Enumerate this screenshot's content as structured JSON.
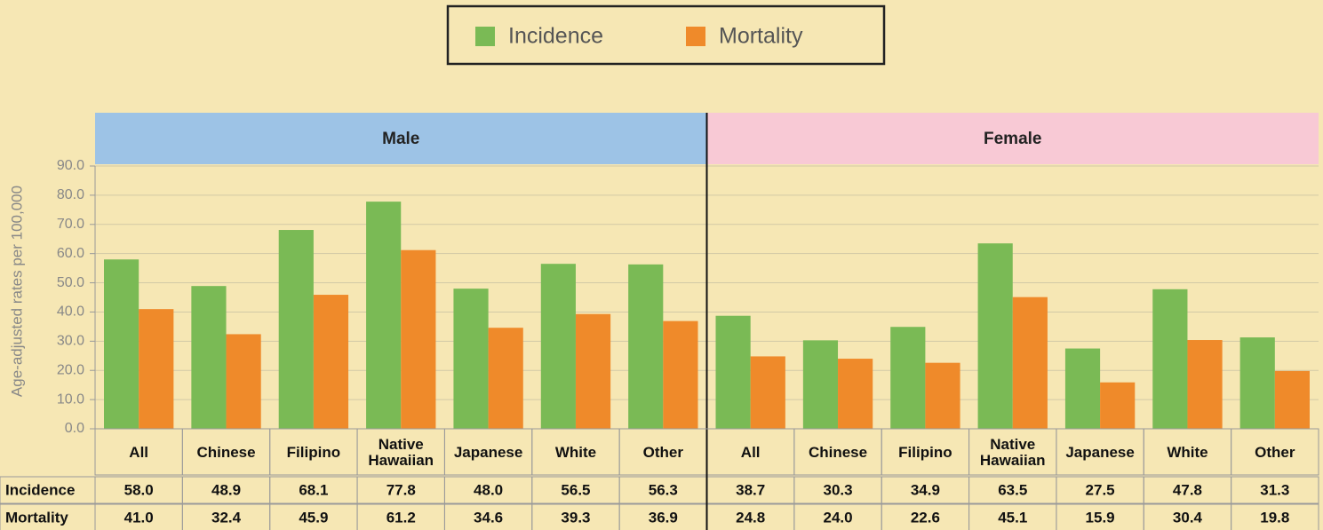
{
  "chart_data": {
    "type": "bar",
    "ylabel": "Age-adjusted rates per 100,000",
    "ylim": [
      0,
      90
    ],
    "yticks": [
      {
        "value": 0,
        "label": "0.0"
      },
      {
        "value": 10,
        "label": "10.0"
      },
      {
        "value": 20,
        "label": "20.0"
      },
      {
        "value": 30,
        "label": "30.0"
      },
      {
        "value": 40,
        "label": "40.0"
      },
      {
        "value": 50,
        "label": "50.0"
      },
      {
        "value": 60,
        "label": "60.0"
      },
      {
        "value": 70,
        "label": "70.0"
      },
      {
        "value": 80,
        "label": "80.0"
      },
      {
        "value": 90,
        "label": "90.0"
      }
    ],
    "grid": true,
    "panels": [
      {
        "title": "Male",
        "color": "#9dc3e6",
        "categories": [
          "All",
          "Chinese",
          "Filipino",
          "Native Hawaiian",
          "Japanese",
          "White",
          "Other"
        ],
        "series": [
          {
            "name": "Incidence",
            "color": "#7aba55",
            "values": [
              58.0,
              48.9,
              68.1,
              77.8,
              48.0,
              56.5,
              56.3
            ],
            "value_labels": [
              "58.0",
              "48.9",
              "68.1",
              "77.8",
              "48.0",
              "56.5",
              "56.3"
            ]
          },
          {
            "name": "Mortality",
            "color": "#ef8a2a",
            "values": [
              41.0,
              32.4,
              45.9,
              61.2,
              34.6,
              39.3,
              36.9
            ],
            "value_labels": [
              "41.0",
              "32.4",
              "45.9",
              "61.2",
              "34.6",
              "39.3",
              "36.9"
            ]
          }
        ]
      },
      {
        "title": "Female",
        "color": "#f8c9d5",
        "categories": [
          "All",
          "Chinese",
          "Filipino",
          "Native Hawaiian",
          "Japanese",
          "White",
          "Other"
        ],
        "series": [
          {
            "name": "Incidence",
            "color": "#7aba55",
            "values": [
              38.7,
              30.3,
              34.9,
              63.5,
              27.5,
              47.8,
              31.3
            ],
            "value_labels": [
              "38.7",
              "30.3",
              "34.9",
              "63.5",
              "27.5",
              "47.8",
              "31.3"
            ]
          },
          {
            "name": "Mortality",
            "color": "#ef8a2a",
            "values": [
              24.8,
              24.0,
              22.6,
              45.1,
              15.9,
              30.4,
              19.8
            ],
            "value_labels": [
              "24.8",
              "24.0",
              "22.6",
              "45.1",
              "15.9",
              "30.4",
              "19.8"
            ]
          }
        ]
      }
    ]
  }
}
